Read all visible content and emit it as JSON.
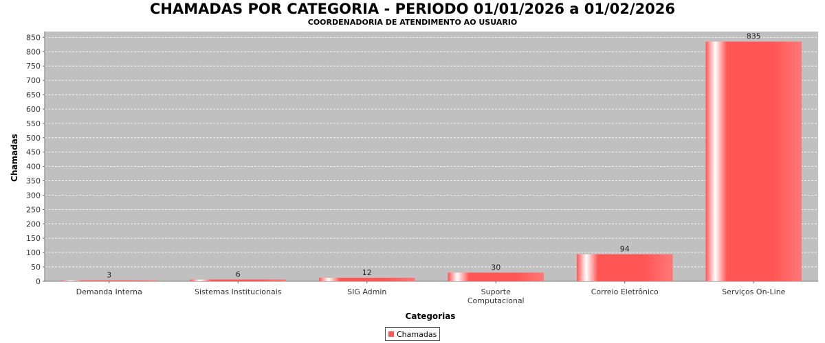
{
  "chart_data": {
    "type": "bar",
    "title": "CHAMADAS POR CATEGORIA - PERIODO 01/01/2026 a 01/02/2026",
    "subtitle": "COORDENADORIA DE ATENDIMENTO AO USUARIO",
    "xlabel": "Categorias",
    "ylabel": "Chamadas",
    "categories": [
      [
        "Demanda Interna"
      ],
      [
        "Sistemas Institucionais"
      ],
      [
        "SIG Admin"
      ],
      [
        "Suporte",
        "Computacional"
      ],
      [
        "Correio Eletrônico"
      ],
      [
        "Serviços On-Line"
      ]
    ],
    "series": [
      {
        "name": "Chamadas",
        "values": [
          3,
          6,
          12,
          30,
          94,
          835
        ]
      }
    ],
    "ylim": [
      0,
      870
    ],
    "yticks": [
      0,
      50,
      100,
      150,
      200,
      250,
      300,
      350,
      400,
      450,
      500,
      550,
      600,
      650,
      700,
      750,
      800,
      850
    ],
    "grid": true,
    "legend_position": "bottom-center",
    "colors": {
      "plot_background": "#c0c0c0",
      "bar": "#ff5555",
      "bar_highlight": "#ffffff",
      "grid": "#ffffff"
    }
  }
}
